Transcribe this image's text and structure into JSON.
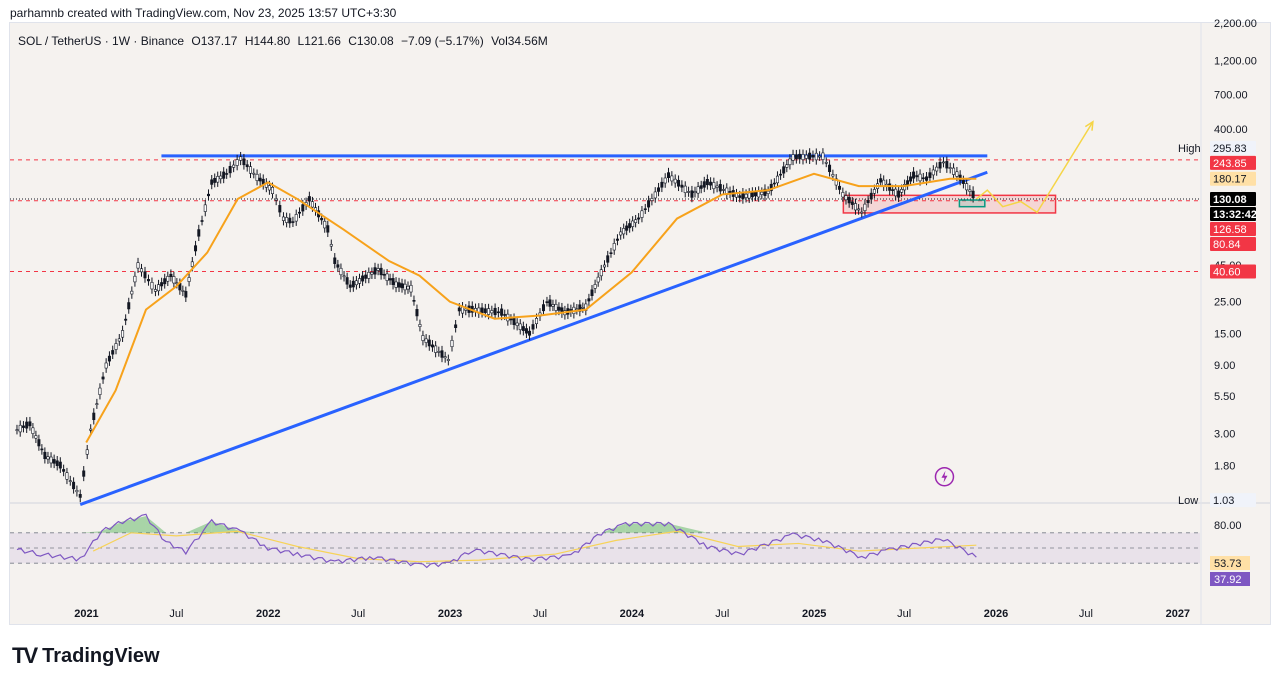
{
  "header": {
    "author_line": "parhamnb created with TradingView.com, Nov 23, 2025 13:57 UTC+3:30"
  },
  "symbol_line": {
    "symbol": "SOL / TetherUS · 1W · Binance",
    "open": "O137.17",
    "high": "H144.80",
    "low": "L121.66",
    "close": "C130.08",
    "change": "−7.09 (−5.17%)",
    "volume": "Vol34.56M"
  },
  "footer": {
    "brand": "TradingView",
    "logo_glyph": "TV"
  },
  "chart_data": [
    {
      "type": "candlestick",
      "title": "SOL / TetherUS · 1W · Binance",
      "y_scale": "log",
      "ylim": [
        1.0,
        2200
      ],
      "x_range": [
        "2020-08-01",
        "2027-02-15"
      ],
      "y_tick_labels": [
        "2,200.00",
        "1,200.00",
        "700.00",
        "400.00",
        "180.17",
        "45.00",
        "25.00",
        "15.00",
        "9.00",
        "5.50",
        "3.00",
        "1.80"
      ],
      "x_tick_labels": [
        "2021",
        "Jul",
        "2022",
        "Jul",
        "2023",
        "Jul",
        "2024",
        "Jul",
        "2025",
        "Jul",
        "2026",
        "Jul",
        "2027"
      ],
      "price_series": [
        {
          "date": "2020-08-15",
          "price": 3.2
        },
        {
          "date": "2020-09-10",
          "price": 3.5
        },
        {
          "date": "2020-10-10",
          "price": 2.1
        },
        {
          "date": "2020-11-10",
          "price": 1.8
        },
        {
          "date": "2020-12-20",
          "price": 1.1
        },
        {
          "date": "2021-01-10",
          "price": 3.2
        },
        {
          "date": "2021-02-10",
          "price": 9
        },
        {
          "date": "2021-03-15",
          "price": 15
        },
        {
          "date": "2021-04-15",
          "price": 45
        },
        {
          "date": "2021-05-20",
          "price": 30
        },
        {
          "date": "2021-06-20",
          "price": 38
        },
        {
          "date": "2021-07-20",
          "price": 28
        },
        {
          "date": "2021-08-15",
          "price": 75
        },
        {
          "date": "2021-09-10",
          "price": 170
        },
        {
          "date": "2021-10-10",
          "price": 195
        },
        {
          "date": "2021-11-07",
          "price": 250
        },
        {
          "date": "2021-12-10",
          "price": 185
        },
        {
          "date": "2022-01-10",
          "price": 150
        },
        {
          "date": "2022-02-01",
          "price": 95
        },
        {
          "date": "2022-02-20",
          "price": 90
        },
        {
          "date": "2022-03-25",
          "price": 130
        },
        {
          "date": "2022-05-01",
          "price": 80
        },
        {
          "date": "2022-05-15",
          "price": 48
        },
        {
          "date": "2022-06-15",
          "price": 32
        },
        {
          "date": "2022-08-10",
          "price": 42
        },
        {
          "date": "2022-09-15",
          "price": 33
        },
        {
          "date": "2022-10-15",
          "price": 31
        },
        {
          "date": "2022-11-08",
          "price": 14
        },
        {
          "date": "2022-12-29",
          "price": 9.8
        },
        {
          "date": "2023-01-20",
          "price": 22
        },
        {
          "date": "2023-02-15",
          "price": 22
        },
        {
          "date": "2023-04-15",
          "price": 21
        },
        {
          "date": "2023-06-10",
          "price": 15
        },
        {
          "date": "2023-07-15",
          "price": 25
        },
        {
          "date": "2023-08-20",
          "price": 21
        },
        {
          "date": "2023-10-01",
          "price": 23
        },
        {
          "date": "2023-11-01",
          "price": 40
        },
        {
          "date": "2023-12-10",
          "price": 75
        },
        {
          "date": "2024-01-15",
          "price": 95
        },
        {
          "date": "2024-03-15",
          "price": 190
        },
        {
          "date": "2024-05-01",
          "price": 140
        },
        {
          "date": "2024-06-01",
          "price": 170
        },
        {
          "date": "2024-08-05",
          "price": 135
        },
        {
          "date": "2024-10-01",
          "price": 145
        },
        {
          "date": "2024-11-20",
          "price": 255
        },
        {
          "date": "2025-01-19",
          "price": 260
        },
        {
          "date": "2025-02-28",
          "price": 140
        },
        {
          "date": "2025-04-07",
          "price": 105
        },
        {
          "date": "2025-05-15",
          "price": 175
        },
        {
          "date": "2025-06-20",
          "price": 140
        },
        {
          "date": "2025-07-20",
          "price": 190
        },
        {
          "date": "2025-08-15",
          "price": 180
        },
        {
          "date": "2025-09-18",
          "price": 235
        },
        {
          "date": "2025-10-15",
          "price": 195
        },
        {
          "date": "2025-11-23",
          "price": 130.08
        }
      ],
      "ma_series": {
        "color": "#f7a21b",
        "points": [
          {
            "date": "2021-01-01",
            "price": 2.6
          },
          {
            "date": "2021-03-01",
            "price": 6
          },
          {
            "date": "2021-05-01",
            "price": 22
          },
          {
            "date": "2021-07-01",
            "price": 32
          },
          {
            "date": "2021-09-01",
            "price": 55
          },
          {
            "date": "2021-11-01",
            "price": 130
          },
          {
            "date": "2022-01-01",
            "price": 170
          },
          {
            "date": "2022-03-01",
            "price": 130
          },
          {
            "date": "2022-06-01",
            "price": 80
          },
          {
            "date": "2022-09-01",
            "price": 48
          },
          {
            "date": "2022-11-01",
            "price": 38
          },
          {
            "date": "2023-01-01",
            "price": 25
          },
          {
            "date": "2023-04-01",
            "price": 19
          },
          {
            "date": "2023-07-01",
            "price": 20
          },
          {
            "date": "2023-10-01",
            "price": 22
          },
          {
            "date": "2024-01-01",
            "price": 40
          },
          {
            "date": "2024-04-01",
            "price": 95
          },
          {
            "date": "2024-07-01",
            "price": 140
          },
          {
            "date": "2024-10-01",
            "price": 150
          },
          {
            "date": "2025-01-01",
            "price": 195
          },
          {
            "date": "2025-04-01",
            "price": 160
          },
          {
            "date": "2025-07-01",
            "price": 160
          },
          {
            "date": "2025-10-01",
            "price": 180
          },
          {
            "date": "2025-11-23",
            "price": 180.17
          }
        ]
      },
      "annotations": {
        "resistance_line": {
          "color": "#2962ff",
          "from": {
            "date": "2021-06-01",
            "price": 260
          },
          "to": {
            "date": "2025-12-15",
            "price": 260
          }
        },
        "trend_line": {
          "color": "#2962ff",
          "from": {
            "date": "2020-12-20",
            "price": 0.96
          },
          "to": {
            "date": "2025-12-15",
            "price": 200
          }
        },
        "dashed_levels": [
          {
            "price": 243.85,
            "color": "#f23645"
          },
          {
            "price": 126.58,
            "color": "#f23645"
          },
          {
            "price": 40.6,
            "color": "#f23645"
          },
          {
            "price": 130.08,
            "color": "#131722",
            "dotted": true
          }
        ],
        "demand_zone": {
          "from": "2025-03-01",
          "to": "2026-05-01",
          "price_top": 138,
          "price_bottom": 104,
          "color": "#f23645"
        },
        "small_box": {
          "from": "2025-10-20",
          "to": "2025-12-10",
          "price_top": 128,
          "price_bottom": 115,
          "color": "#089981"
        },
        "projection_path": {
          "color": "#f5d547",
          "points": [
            {
              "date": "2025-11-23",
              "price": 130
            },
            {
              "date": "2025-12-15",
              "price": 150
            },
            {
              "date": "2026-01-15",
              "price": 115
            },
            {
              "date": "2026-02-20",
              "price": 125
            },
            {
              "date": "2026-03-25",
              "price": 105
            },
            {
              "date": "2026-07-15",
              "price": 450
            }
          ]
        },
        "lightning_icon": {
          "date": "2025-09-20",
          "price": 1.5,
          "color": "#9c27b0"
        }
      },
      "price_labels": [
        {
          "text": "High",
          "value": "295.83",
          "price": 295.83,
          "bg": "#f0f3fa",
          "fg": "#131722"
        },
        {
          "text": "",
          "value": "243.85",
          "price": 243.85,
          "bg": "#f23645",
          "fg": "#ffffff"
        },
        {
          "text": "",
          "value": "180.17",
          "price": 180.17,
          "bg": "#ffe0a6",
          "fg": "#131722"
        },
        {
          "text": "",
          "value": "130.08",
          "price": 130.08,
          "bg": "#000000",
          "fg": "#ffffff"
        },
        {
          "text": "",
          "value": "13:32:42",
          "price": 130.08,
          "bg": "#000000",
          "fg": "#ffffff"
        },
        {
          "text": "",
          "value": "126.58",
          "price": 126.58,
          "bg": "#f23645",
          "fg": "#ffffff"
        },
        {
          "text": "",
          "value": "80.84",
          "price": 80.84,
          "bg": "#f23645",
          "fg": "#ffffff"
        },
        {
          "text": "",
          "value": "40.60",
          "price": 40.6,
          "bg": "#f23645",
          "fg": "#ffffff"
        },
        {
          "text": "Low",
          "value": "1.03",
          "price": 1.03,
          "bg": "#f0f3fa",
          "fg": "#131722"
        }
      ]
    },
    {
      "type": "line",
      "title": "RSI",
      "ylim": [
        0,
        100
      ],
      "y_tick_labels": [
        "80.00"
      ],
      "band": [
        30,
        70
      ],
      "rsi_color": "#7e57c2",
      "signal_color": "#f7d358",
      "rsi_value": "37.92",
      "signal_value": "53.73",
      "rsi": [
        {
          "date": "2020-08-15",
          "v": 48
        },
        {
          "date": "2020-10-01",
          "v": 42
        },
        {
          "date": "2020-12-20",
          "v": 35
        },
        {
          "date": "2021-02-01",
          "v": 72
        },
        {
          "date": "2021-03-15",
          "v": 85
        },
        {
          "date": "2021-05-01",
          "v": 92
        },
        {
          "date": "2021-06-10",
          "v": 58
        },
        {
          "date": "2021-07-20",
          "v": 45
        },
        {
          "date": "2021-09-10",
          "v": 85
        },
        {
          "date": "2021-11-07",
          "v": 72
        },
        {
          "date": "2022-01-01",
          "v": 50
        },
        {
          "date": "2022-03-01",
          "v": 42
        },
        {
          "date": "2022-05-15",
          "v": 32
        },
        {
          "date": "2022-08-01",
          "v": 38
        },
        {
          "date": "2022-11-08",
          "v": 27
        },
        {
          "date": "2023-01-01",
          "v": 30
        },
        {
          "date": "2023-02-15",
          "v": 48
        },
        {
          "date": "2023-06-10",
          "v": 35
        },
        {
          "date": "2023-09-01",
          "v": 40
        },
        {
          "date": "2023-11-01",
          "v": 70
        },
        {
          "date": "2023-12-20",
          "v": 82
        },
        {
          "date": "2024-03-15",
          "v": 82
        },
        {
          "date": "2024-06-01",
          "v": 52
        },
        {
          "date": "2024-08-05",
          "v": 42
        },
        {
          "date": "2024-11-20",
          "v": 68
        },
        {
          "date": "2025-01-19",
          "v": 60
        },
        {
          "date": "2025-04-07",
          "v": 38
        },
        {
          "date": "2025-06-01",
          "v": 48
        },
        {
          "date": "2025-09-18",
          "v": 62
        },
        {
          "date": "2025-11-23",
          "v": 37.92
        }
      ],
      "signal": [
        {
          "date": "2021-01-15",
          "v": 46
        },
        {
          "date": "2021-04-01",
          "v": 70
        },
        {
          "date": "2021-07-01",
          "v": 66
        },
        {
          "date": "2021-11-01",
          "v": 72
        },
        {
          "date": "2022-03-01",
          "v": 52
        },
        {
          "date": "2022-07-01",
          "v": 36
        },
        {
          "date": "2022-11-01",
          "v": 32
        },
        {
          "date": "2023-03-01",
          "v": 34
        },
        {
          "date": "2023-08-01",
          "v": 42
        },
        {
          "date": "2023-12-01",
          "v": 60
        },
        {
          "date": "2024-04-01",
          "v": 72
        },
        {
          "date": "2024-08-01",
          "v": 52
        },
        {
          "date": "2024-12-01",
          "v": 56
        },
        {
          "date": "2025-04-01",
          "v": 46
        },
        {
          "date": "2025-08-01",
          "v": 50
        },
        {
          "date": "2025-11-23",
          "v": 53.73
        }
      ]
    }
  ]
}
